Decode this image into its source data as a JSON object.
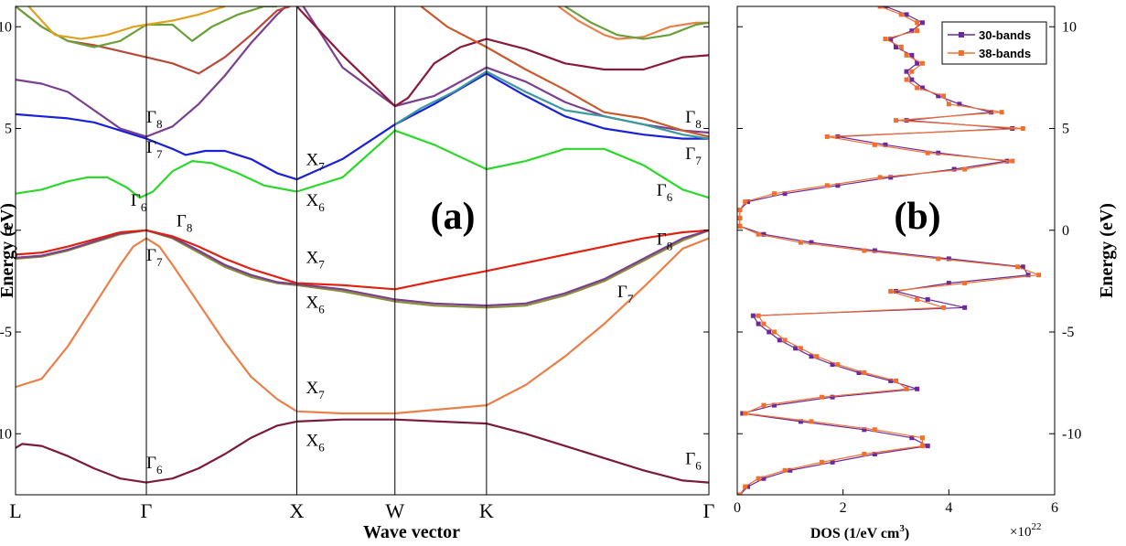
{
  "chart_data": [
    {
      "type": "line",
      "panel_label": "(a)",
      "xlabel": "Wave vector",
      "ylabel": "Energy (eV)",
      "ylim": [
        -13,
        11
      ],
      "x_ticks": [
        {
          "label": "L",
          "x": 0
        },
        {
          "label": "Γ",
          "x": 1
        },
        {
          "label": "X",
          "x": 2.15
        },
        {
          "label": "W",
          "x": 2.9
        },
        {
          "label": "K",
          "x": 3.6
        },
        {
          "label": "Γ",
          "x": 5.3
        }
      ],
      "xlim": [
        0,
        5.3
      ],
      "y_ticks": [
        10,
        5,
        0,
        -5,
        -10
      ],
      "point_labels": [
        {
          "sym": "Γ",
          "sub": "8",
          "x": 1.0,
          "y": 5.3
        },
        {
          "sym": "Γ",
          "sub": "7",
          "x": 1.0,
          "y": 3.8
        },
        {
          "sym": "Γ",
          "sub": "6",
          "x": 0.88,
          "y": 1.2
        },
        {
          "sym": "Γ",
          "sub": "8",
          "x": 1.23,
          "y": 0.2
        },
        {
          "sym": "Γ",
          "sub": "7",
          "x": 1.0,
          "y": -1.5
        },
        {
          "sym": "Γ",
          "sub": "6",
          "x": 1.0,
          "y": -11.7
        },
        {
          "sym": "X",
          "sub": "7",
          "x": 2.22,
          "y": 3.2
        },
        {
          "sym": "X",
          "sub": "6",
          "x": 2.22,
          "y": 1.2
        },
        {
          "sym": "X",
          "sub": "7",
          "x": 2.22,
          "y": -1.6
        },
        {
          "sym": "X",
          "sub": "6",
          "x": 2.22,
          "y": -3.8
        },
        {
          "sym": "X",
          "sub": "7",
          "x": 2.22,
          "y": -8.0
        },
        {
          "sym": "X",
          "sub": "6",
          "x": 2.22,
          "y": -10.6
        },
        {
          "sym": "Γ",
          "sub": "8",
          "x": 5.12,
          "y": 5.3
        },
        {
          "sym": "Γ",
          "sub": "7",
          "x": 5.12,
          "y": 3.5
        },
        {
          "sym": "Γ",
          "sub": "6",
          "x": 4.9,
          "y": 1.7
        },
        {
          "sym": "Γ",
          "sub": "8",
          "x": 4.9,
          "y": -0.7
        },
        {
          "sym": "Γ",
          "sub": "7",
          "x": 4.6,
          "y": -3.3
        },
        {
          "sym": "Γ",
          "sub": "6",
          "x": 5.12,
          "y": -11.5
        }
      ],
      "series": [
        {
          "color": "#7b1a3a",
          "x": [
            0,
            0.05,
            0.2,
            0.4,
            0.6,
            0.8,
            1.0,
            1.2,
            1.4,
            1.6,
            1.8,
            2.0,
            2.15,
            2.5,
            2.9,
            3.6,
            3.9,
            4.2,
            4.5,
            4.8,
            5.1,
            5.3
          ],
          "y": [
            -10.7,
            -10.5,
            -10.6,
            -11.1,
            -11.7,
            -12.2,
            -12.4,
            -12.2,
            -11.7,
            -11.0,
            -10.2,
            -9.6,
            -9.4,
            -9.3,
            -9.3,
            -9.5,
            -10.0,
            -10.6,
            -11.2,
            -11.8,
            -12.3,
            -12.4
          ]
        },
        {
          "color": "#e8804a",
          "x": [
            0,
            0.2,
            0.4,
            0.6,
            0.8,
            0.9,
            1.0,
            1.1,
            1.2,
            1.4,
            1.6,
            1.8,
            2.0,
            2.15,
            2.5,
            2.9,
            3.6,
            3.9,
            4.2,
            4.5,
            4.8,
            5.1,
            5.3
          ],
          "y": [
            -7.7,
            -7.3,
            -5.7,
            -3.7,
            -1.7,
            -0.8,
            -0.4,
            -0.8,
            -1.7,
            -3.6,
            -5.5,
            -7.2,
            -8.3,
            -8.9,
            -9.0,
            -9.0,
            -8.6,
            -7.6,
            -6.2,
            -4.6,
            -2.8,
            -0.9,
            -0.4
          ]
        },
        {
          "color": "#8a8f3a",
          "x": [
            0,
            0.2,
            0.4,
            0.6,
            0.8,
            1.0,
            1.2,
            1.4,
            1.6,
            1.8,
            2.0,
            2.15,
            2.5,
            2.9,
            3.2,
            3.6,
            3.9,
            4.2,
            4.5,
            4.8,
            5.1,
            5.3
          ],
          "y": [
            -1.4,
            -1.3,
            -1.0,
            -0.6,
            -0.2,
            0,
            -0.4,
            -1.1,
            -1.8,
            -2.3,
            -2.6,
            -2.7,
            -3.0,
            -3.5,
            -3.7,
            -3.8,
            -3.7,
            -3.2,
            -2.5,
            -1.5,
            -0.5,
            0
          ]
        },
        {
          "color": "#7a3f8f",
          "x": [
            0,
            0.2,
            0.4,
            0.6,
            0.8,
            1.0,
            1.2,
            1.4,
            1.6,
            1.8,
            2.0,
            2.15,
            2.5,
            2.9,
            3.2,
            3.6,
            3.9,
            4.2,
            4.5,
            4.8,
            5.1,
            5.3
          ],
          "y": [
            -1.35,
            -1.25,
            -0.95,
            -0.55,
            -0.15,
            0,
            -0.35,
            -1.0,
            -1.7,
            -2.2,
            -2.55,
            -2.65,
            -2.9,
            -3.4,
            -3.6,
            -3.7,
            -3.6,
            -3.1,
            -2.4,
            -1.4,
            -0.4,
            0
          ]
        },
        {
          "color": "#e02010",
          "x": [
            0,
            0.2,
            0.4,
            0.6,
            0.8,
            1.0,
            1.2,
            1.4,
            1.6,
            1.8,
            2.0,
            2.15,
            2.5,
            2.9,
            3.2,
            3.6,
            3.9,
            4.2,
            4.5,
            4.8,
            5.1,
            5.3
          ],
          "y": [
            -1.2,
            -1.1,
            -0.8,
            -0.45,
            -0.1,
            0,
            -0.3,
            -0.8,
            -1.4,
            -1.9,
            -2.3,
            -2.6,
            -2.7,
            -2.9,
            -2.5,
            -2.0,
            -1.6,
            -1.2,
            -0.8,
            -0.4,
            -0.1,
            0
          ]
        },
        {
          "color": "#2bd82b",
          "x": [
            0,
            0.2,
            0.4,
            0.55,
            0.7,
            0.85,
            0.95,
            1.05,
            1.2,
            1.35,
            1.5,
            1.7,
            1.9,
            2.15,
            2.5,
            2.9,
            3.2,
            3.6,
            3.9,
            4.2,
            4.5,
            4.8,
            5.1,
            5.3
          ],
          "y": [
            1.8,
            2.0,
            2.4,
            2.6,
            2.6,
            2.1,
            1.6,
            1.9,
            2.9,
            3.4,
            3.3,
            2.8,
            2.2,
            1.9,
            2.6,
            4.9,
            4.2,
            3.0,
            3.4,
            4.0,
            4.0,
            3.2,
            2.0,
            1.6
          ]
        },
        {
          "color": "#1a20d8",
          "x": [
            0,
            0.2,
            0.4,
            0.6,
            0.8,
            1.0,
            1.2,
            1.3,
            1.45,
            1.6,
            1.8,
            2.0,
            2.15,
            2.5,
            2.9,
            3.2,
            3.6,
            3.9,
            4.2,
            4.5,
            4.8,
            5.1,
            5.3
          ],
          "y": [
            5.7,
            5.6,
            5.5,
            5.3,
            4.9,
            4.5,
            4.0,
            3.7,
            3.9,
            3.9,
            3.5,
            2.8,
            2.5,
            3.5,
            5.2,
            6.2,
            7.7,
            6.6,
            5.6,
            5.0,
            4.7,
            4.5,
            4.5
          ]
        },
        {
          "color": "#7a3f8f",
          "x": [
            0,
            0.2,
            0.4,
            0.6,
            0.8,
            1.0,
            1.2,
            1.4,
            1.6,
            1.8,
            2.0,
            2.15,
            2.5,
            2.9,
            3.2,
            3.6,
            3.9,
            4.2,
            4.5,
            4.8,
            5.1,
            5.3
          ],
          "y": [
            7.4,
            7.2,
            6.8,
            5.9,
            5.0,
            4.6,
            5.1,
            6.2,
            7.6,
            9.2,
            10.6,
            11.5,
            8.0,
            6.1,
            6.6,
            8.0,
            7.3,
            6.3,
            5.6,
            5.2,
            4.9,
            4.8
          ]
        },
        {
          "color": "#b84a3a",
          "x": [
            0,
            0.2,
            0.4,
            0.6,
            0.8,
            1.0,
            1.2,
            1.4,
            1.6,
            1.8,
            2.0,
            2.1
          ],
          "y": [
            11.0,
            10.0,
            9.3,
            9.1,
            8.8,
            8.5,
            8.2,
            7.7,
            8.5,
            9.6,
            10.8,
            11.0
          ]
        },
        {
          "color": "#6aa03a",
          "x": [
            0,
            0.2,
            0.4,
            0.6,
            0.8,
            1.0,
            1.2,
            1.35,
            1.5,
            1.7,
            1.9,
            2.0
          ],
          "y": [
            11.0,
            10.0,
            9.3,
            9.0,
            9.3,
            10.1,
            10.1,
            9.3,
            10.0,
            10.6,
            11.0,
            11.0
          ]
        },
        {
          "color": "#e0a020",
          "x": [
            0.1,
            0.3,
            0.5,
            0.7,
            0.9,
            1.0,
            1.2,
            1.4,
            1.6
          ],
          "y": [
            11.0,
            9.6,
            9.4,
            9.6,
            10.0,
            10.1,
            10.3,
            10.6,
            11.0
          ]
        },
        {
          "color": "#8a1a3a",
          "x": [
            2.15,
            2.5,
            2.9,
            3.0,
            3.2,
            3.4,
            3.6,
            3.9,
            4.2,
            4.5,
            4.8,
            5.1,
            5.3
          ],
          "y": [
            11.0,
            8.6,
            6.1,
            6.5,
            8.2,
            9.0,
            9.4,
            8.9,
            8.2,
            7.9,
            7.9,
            8.5,
            8.6
          ]
        },
        {
          "color": "#c85a30",
          "x": [
            3.1,
            3.3,
            3.6,
            3.9,
            4.2,
            4.5,
            4.8,
            5.1,
            5.3
          ],
          "y": [
            11.0,
            10.0,
            9.0,
            7.9,
            6.9,
            5.8,
            5.5,
            4.9,
            4.6
          ]
        },
        {
          "color": "#3a9aa0",
          "x": [
            2.9,
            3.1,
            3.35,
            3.6,
            3.9,
            4.2,
            4.5,
            4.8,
            5.1,
            5.3
          ],
          "y": [
            5.2,
            6.0,
            6.8,
            7.8,
            6.8,
            5.9,
            5.6,
            5.2,
            4.7,
            4.5
          ]
        },
        {
          "color": "#e8804a",
          "x": [
            4.15,
            4.3,
            4.5,
            4.6,
            4.8,
            5.0,
            5.2,
            5.3
          ],
          "y": [
            11.0,
            10.3,
            9.6,
            9.4,
            9.5,
            10.0,
            10.2,
            10.2
          ]
        },
        {
          "color": "#6aa03a",
          "x": [
            4.2,
            4.4,
            4.6,
            4.8,
            5.0,
            5.2,
            5.3
          ],
          "y": [
            11.0,
            10.2,
            9.6,
            9.4,
            9.6,
            10.1,
            10.2
          ]
        }
      ]
    },
    {
      "type": "line",
      "panel_label": "(b)",
      "xlabel": "DOS (1/eV cm",
      "xlabel_sup": "3",
      "xlabel_close": ")",
      "ylabel": "Energy (eV)",
      "multiplier": "×10",
      "multiplier_exp": "22",
      "xlim": [
        0,
        6
      ],
      "ylim": [
        -13,
        11
      ],
      "x_ticks": [
        0,
        2,
        4,
        6
      ],
      "y_ticks": [
        10,
        5,
        0,
        -5,
        -10
      ],
      "series": [
        {
          "name": "30-bands",
          "color": "#6a2a9a",
          "marker": "square",
          "y": [
            11,
            10.6,
            10.2,
            9.8,
            9.4,
            9,
            8.6,
            8.2,
            7.8,
            7.4,
            7,
            6.6,
            6.2,
            5.8,
            5.4,
            5,
            4.6,
            4.2,
            3.8,
            3.4,
            3,
            2.6,
            2.2,
            1.8,
            1.4,
            1,
            0.6,
            0.2,
            -0.2,
            -0.6,
            -1,
            -1.4,
            -1.8,
            -2.2,
            -2.6,
            -3,
            -3.4,
            -3.8,
            -4.2,
            -4.6,
            -5,
            -5.4,
            -5.8,
            -6.2,
            -6.6,
            -7,
            -7.4,
            -7.8,
            -8.2,
            -8.6,
            -9,
            -9.4,
            -9.8,
            -10.2,
            -10.6,
            -11,
            -11.4,
            -11.8,
            -12.2,
            -12.6,
            -13
          ],
          "x": [
            2.8,
            3.2,
            3.5,
            3.3,
            2.9,
            3.0,
            3.3,
            3.4,
            3.2,
            3.3,
            3.5,
            3.8,
            4.2,
            4.8,
            3.2,
            5.2,
            1.9,
            2.8,
            3.8,
            5.1,
            4.1,
            2.9,
            1.9,
            0.9,
            0.2,
            0.05,
            0.05,
            0.05,
            0.5,
            1.4,
            2.6,
            4.0,
            5.4,
            5.5,
            4.0,
            3.0,
            3.6,
            4.3,
            0.3,
            0.4,
            0.6,
            0.8,
            1.1,
            1.4,
            1.8,
            2.3,
            2.9,
            3.4,
            1.8,
            0.7,
            0.1,
            1.2,
            2.4,
            3.3,
            3.6,
            2.6,
            1.8,
            1.0,
            0.5,
            0.2,
            0.05
          ]
        },
        {
          "name": "38-bands",
          "color": "#f07030",
          "marker": "square",
          "y": [
            11,
            10.6,
            10.2,
            9.8,
            9.4,
            9,
            8.6,
            8.2,
            7.8,
            7.4,
            7,
            6.6,
            6.2,
            5.8,
            5.4,
            5,
            4.6,
            4.2,
            3.8,
            3.4,
            3,
            2.6,
            2.2,
            1.8,
            1.4,
            1,
            0.6,
            0.2,
            -0.2,
            -0.6,
            -1,
            -1.4,
            -1.8,
            -2.2,
            -2.6,
            -3,
            -3.4,
            -3.8,
            -4.2,
            -4.6,
            -5,
            -5.4,
            -5.8,
            -6.2,
            -6.6,
            -7,
            -7.4,
            -7.8,
            -8.2,
            -8.6,
            -9,
            -9.4,
            -9.8,
            -10.2,
            -10.6,
            -11,
            -11.4,
            -11.8,
            -12.2,
            -12.6,
            -13
          ],
          "x": [
            2.7,
            3.1,
            3.4,
            3.4,
            2.8,
            3.1,
            3.2,
            3.5,
            3.3,
            3.2,
            3.4,
            3.9,
            4.0,
            5.0,
            3.0,
            5.4,
            1.7,
            2.6,
            3.6,
            5.2,
            4.3,
            2.7,
            1.7,
            0.7,
            0.15,
            0.05,
            0.05,
            0.05,
            0.4,
            1.2,
            2.4,
            3.8,
            5.3,
            5.7,
            4.3,
            2.9,
            3.4,
            3.9,
            0.4,
            0.5,
            0.7,
            0.9,
            1.2,
            1.5,
            1.9,
            2.4,
            3.0,
            3.2,
            1.6,
            0.5,
            0.15,
            1.4,
            2.6,
            3.5,
            3.5,
            2.4,
            1.6,
            0.9,
            0.4,
            0.15,
            0.05
          ]
        }
      ]
    }
  ]
}
